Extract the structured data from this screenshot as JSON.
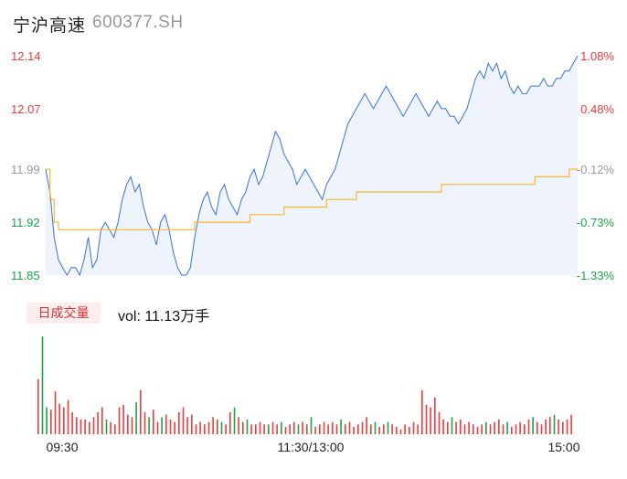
{
  "header": {
    "name": "宁沪高速",
    "code": "600377.SH"
  },
  "volume_panel": {
    "tag": "日成交量",
    "label": "vol: 11.13万手"
  },
  "colors": {
    "price_line": "#3b6ee8",
    "avg_line": "#f5b82e",
    "area_fill": "#eef3fc",
    "up": "#ee3b3b",
    "down": "#1aa34a",
    "flat": "#999999"
  },
  "chart_data": [
    {
      "type": "line",
      "y_ticks_left": [
        {
          "value": 12.14,
          "label": "12.14",
          "tone": "up"
        },
        {
          "value": 12.07,
          "label": "12.07",
          "tone": "up"
        },
        {
          "value": 11.99,
          "label": "11.99",
          "tone": "flat"
        },
        {
          "value": 11.92,
          "label": "11.92",
          "tone": "down"
        },
        {
          "value": 11.85,
          "label": "11.85",
          "tone": "down"
        }
      ],
      "y_ticks_right": [
        {
          "value": 12.14,
          "label": "1.08%",
          "tone": "up"
        },
        {
          "value": 12.07,
          "label": "0.48%",
          "tone": "up"
        },
        {
          "value": 11.99,
          "label": "-0.12%",
          "tone": "flat"
        },
        {
          "value": 11.92,
          "label": "-0.73%",
          "tone": "down"
        },
        {
          "value": 11.85,
          "label": "-1.33%",
          "tone": "down"
        }
      ],
      "ylim": [
        11.85,
        12.14
      ],
      "x_ticks": [
        "09:30",
        "11:30/13:00",
        "15:00"
      ],
      "price": [
        11.99,
        11.96,
        11.9,
        11.87,
        11.86,
        11.85,
        11.86,
        11.86,
        11.85,
        11.87,
        11.9,
        11.86,
        11.87,
        11.91,
        11.92,
        11.91,
        11.9,
        11.92,
        11.95,
        11.97,
        11.98,
        11.96,
        11.97,
        11.94,
        11.92,
        11.91,
        11.89,
        11.92,
        11.93,
        11.91,
        11.88,
        11.86,
        11.85,
        11.85,
        11.86,
        11.9,
        11.93,
        11.95,
        11.96,
        11.94,
        11.93,
        11.96,
        11.97,
        11.95,
        11.94,
        11.93,
        11.95,
        11.96,
        11.98,
        11.99,
        11.97,
        11.98,
        12.0,
        12.02,
        12.04,
        12.03,
        12.01,
        12.0,
        11.99,
        11.97,
        11.98,
        11.99,
        11.98,
        11.97,
        11.96,
        11.95,
        11.97,
        11.98,
        11.99,
        12.01,
        12.03,
        12.05,
        12.06,
        12.07,
        12.08,
        12.09,
        12.08,
        12.07,
        12.08,
        12.09,
        12.1,
        12.09,
        12.08,
        12.07,
        12.06,
        12.07,
        12.08,
        12.09,
        12.08,
        12.07,
        12.06,
        12.07,
        12.08,
        12.07,
        12.07,
        12.06,
        12.06,
        12.05,
        12.06,
        12.07,
        12.09,
        12.11,
        12.12,
        12.11,
        12.13,
        12.12,
        12.13,
        12.11,
        12.12,
        12.1,
        12.09,
        12.1,
        12.09,
        12.09,
        12.1,
        12.1,
        12.1,
        12.11,
        12.1,
        12.1,
        12.11,
        12.11,
        12.12,
        12.12,
        12.13,
        12.14
      ],
      "avg": [
        11.99,
        11.95,
        11.92,
        11.91,
        11.91,
        11.91,
        11.91,
        11.91,
        11.91,
        11.91,
        11.91,
        11.91,
        11.91,
        11.91,
        11.91,
        11.91,
        11.91,
        11.91,
        11.91,
        11.91,
        11.91,
        11.91,
        11.91,
        11.91,
        11.91,
        11.91,
        11.91,
        11.91,
        11.91,
        11.91,
        11.91,
        11.91,
        11.91,
        11.91,
        11.91,
        11.92,
        11.92,
        11.92,
        11.92,
        11.92,
        11.92,
        11.92,
        11.92,
        11.92,
        11.92,
        11.92,
        11.92,
        11.92,
        11.93,
        11.93,
        11.93,
        11.93,
        11.93,
        11.93,
        11.93,
        11.93,
        11.94,
        11.94,
        11.94,
        11.94,
        11.94,
        11.94,
        11.94,
        11.94,
        11.94,
        11.94,
        11.95,
        11.95,
        11.95,
        11.95,
        11.95,
        11.95,
        11.95,
        11.96,
        11.96,
        11.96,
        11.96,
        11.96,
        11.96,
        11.96,
        11.96,
        11.96,
        11.96,
        11.96,
        11.96,
        11.96,
        11.96,
        11.96,
        11.96,
        11.96,
        11.96,
        11.96,
        11.96,
        11.97,
        11.97,
        11.97,
        11.97,
        11.97,
        11.97,
        11.97,
        11.97,
        11.97,
        11.97,
        11.97,
        11.97,
        11.97,
        11.97,
        11.97,
        11.97,
        11.97,
        11.97,
        11.97,
        11.97,
        11.97,
        11.97,
        11.98,
        11.98,
        11.98,
        11.98,
        11.98,
        11.98,
        11.98,
        11.98,
        11.99,
        11.99,
        11.99
      ]
    },
    {
      "type": "bar",
      "volume": [
        45,
        80,
        22,
        20,
        35,
        25,
        22,
        28,
        18,
        14,
        12,
        12,
        10,
        14,
        18,
        22,
        12,
        10,
        8,
        22,
        24,
        16,
        14,
        26,
        36,
        18,
        14,
        20,
        10,
        14,
        16,
        12,
        10,
        18,
        22,
        14,
        16,
        8,
        10,
        8,
        10,
        14,
        12,
        10,
        8,
        18,
        22,
        14,
        10,
        12,
        8,
        8,
        10,
        8,
        8,
        10,
        8,
        10,
        6,
        8,
        10,
        8,
        10,
        8,
        14,
        6,
        8,
        10,
        8,
        10,
        8,
        12,
        8,
        10,
        6,
        8,
        10,
        14,
        8,
        10,
        6,
        8,
        10,
        8,
        6,
        4,
        8,
        6,
        10,
        8,
        36,
        24,
        22,
        30,
        18,
        12,
        10,
        14,
        10,
        12,
        8,
        10,
        8,
        6,
        8,
        10,
        8,
        10,
        12,
        8,
        10,
        6,
        8,
        10,
        8,
        12,
        14,
        10,
        8,
        12,
        14,
        16,
        12,
        10,
        12,
        16
      ],
      "direction": [
        "u",
        "d",
        "d",
        "u",
        "u",
        "u",
        "u",
        "u",
        "u",
        "u",
        "u",
        "u",
        "u",
        "u",
        "u",
        "u",
        "d",
        "u",
        "u",
        "u",
        "u",
        "u",
        "u",
        "d",
        "u",
        "u",
        "d",
        "u",
        "u",
        "d",
        "u",
        "u",
        "u",
        "u",
        "u",
        "u",
        "u",
        "u",
        "u",
        "u",
        "u",
        "u",
        "u",
        "d",
        "u",
        "u",
        "d",
        "u",
        "u",
        "d",
        "u",
        "u",
        "u",
        "u",
        "d",
        "u",
        "u",
        "d",
        "u",
        "u",
        "u",
        "d",
        "u",
        "u",
        "d",
        "u",
        "u",
        "u",
        "u",
        "u",
        "u",
        "d",
        "u",
        "u",
        "u",
        "u",
        "u",
        "u",
        "u",
        "d",
        "u",
        "u",
        "d",
        "u",
        "u",
        "u",
        "u",
        "u",
        "u",
        "u",
        "u",
        "u",
        "u",
        "u",
        "u",
        "u",
        "u",
        "d",
        "u",
        "u",
        "u",
        "u",
        "u",
        "u",
        "u",
        "d",
        "u",
        "u",
        "u",
        "u",
        "d",
        "u",
        "u",
        "u",
        "u",
        "u",
        "d",
        "u",
        "u",
        "u",
        "u",
        "d",
        "u",
        "u",
        "u",
        "u"
      ]
    }
  ]
}
